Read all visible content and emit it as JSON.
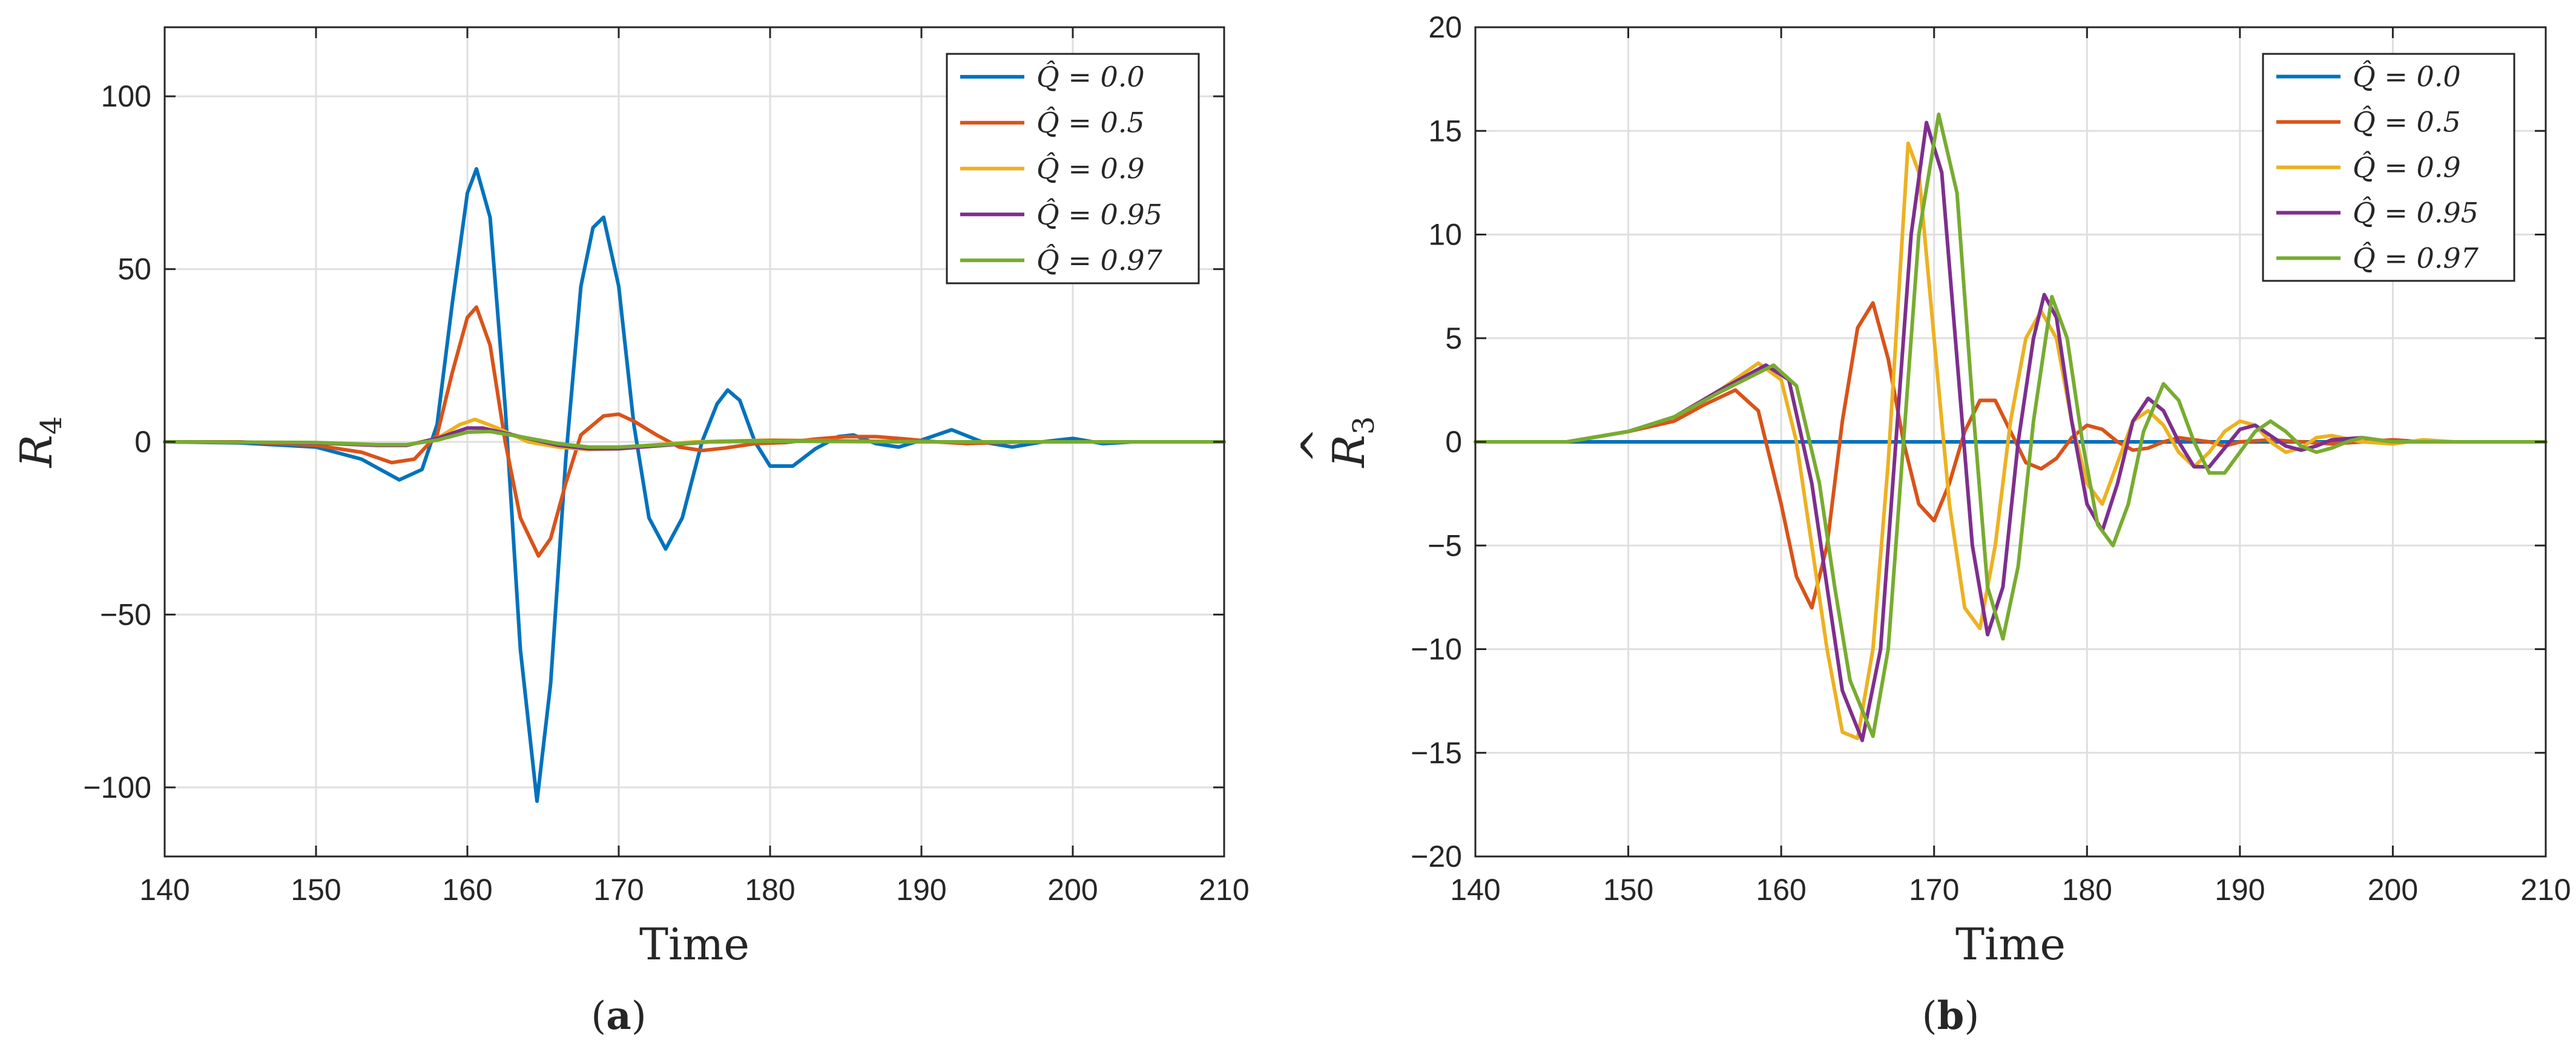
{
  "chart_data": [
    {
      "id": "a",
      "type": "line",
      "caption_letter": "a",
      "xlabel": "Time",
      "ylabel_base": "R",
      "ylabel_sub": "4",
      "xlim": [
        140,
        210
      ],
      "ylim": [
        -120,
        120
      ],
      "xticks": [
        140,
        150,
        160,
        170,
        180,
        190,
        200,
        210
      ],
      "xtick_labels": [
        "140",
        "150",
        "160",
        "170",
        "180",
        "190",
        "200",
        "210"
      ],
      "yticks": [
        -100,
        -50,
        0,
        50,
        100
      ],
      "ytick_labels": [
        "−100",
        "−50",
        "0",
        "50",
        "100"
      ],
      "grid": true,
      "legend_position": "top-right",
      "series": [
        {
          "name": "Q̂ = 0.0",
          "color": "#0072BD",
          "x": [
            140,
            145,
            150,
            153,
            155.5,
            157,
            158,
            159,
            160,
            160.6,
            161.5,
            162.5,
            163.5,
            164.6,
            165.5,
            166.5,
            167.5,
            168.3,
            169,
            170,
            171,
            172,
            173.1,
            174.2,
            175.5,
            176.5,
            177.2,
            178,
            179,
            180,
            181.5,
            183,
            184.5,
            185.5,
            187,
            188.5,
            190,
            192,
            194,
            196,
            198,
            200,
            202,
            204,
            206,
            208,
            210
          ],
          "y": [
            0,
            -0.3,
            -1.5,
            -5,
            -11,
            -8,
            5,
            40,
            72,
            79,
            65,
            10,
            -60,
            -104,
            -70,
            -5,
            45,
            62,
            65,
            45,
            5,
            -22,
            -31,
            -22,
            0,
            11,
            15,
            12,
            0,
            -7,
            -7,
            -2,
            1.5,
            2,
            -0.5,
            -1.5,
            0.5,
            3.5,
            0,
            -1.5,
            0,
            1,
            -0.5,
            0,
            0,
            0,
            0
          ]
        },
        {
          "name": "Q̂ = 0.5",
          "color": "#D95319",
          "x": [
            140,
            145,
            150,
            153,
            155,
            156.5,
            158,
            159,
            160,
            160.6,
            161.5,
            162.5,
            163.5,
            164.7,
            165.5,
            166.5,
            167.5,
            169,
            170,
            171,
            172.5,
            174,
            175.5,
            177,
            179,
            181,
            183,
            185,
            187,
            189,
            191,
            193,
            195,
            197,
            200,
            205,
            210
          ],
          "y": [
            0,
            0,
            -1,
            -3,
            -6,
            -5,
            2,
            20,
            36,
            39,
            28,
            0,
            -22,
            -33,
            -28,
            -12,
            2,
            7.5,
            8,
            6,
            2,
            -1.5,
            -2.5,
            -1.8,
            -0.5,
            -0.2,
            0.8,
            1.5,
            1.5,
            0.8,
            0,
            -0.5,
            -0.2,
            0,
            0,
            0,
            0
          ]
        },
        {
          "name": "Q̂ = 0.9",
          "color": "#EDB120",
          "x": [
            140,
            150,
            154,
            156,
            158,
            159.5,
            160.5,
            162,
            164,
            166,
            168,
            170,
            172,
            175,
            180,
            190,
            200,
            210
          ],
          "y": [
            0,
            -0.3,
            -1,
            -1,
            1,
            5,
            6.5,
            4,
            0,
            -1.5,
            -2.2,
            -2,
            -1,
            0,
            0.5,
            0,
            0,
            0
          ]
        },
        {
          "name": "Q̂ = 0.95",
          "color": "#7E2F8E",
          "x": [
            140,
            150,
            154,
            156,
            158,
            160,
            161,
            163,
            166,
            168,
            170,
            173,
            176,
            180,
            190,
            200,
            210
          ],
          "y": [
            0,
            -0.3,
            -1,
            -1,
            1,
            4,
            4,
            2,
            -1,
            -2,
            -2,
            -1,
            0,
            0.3,
            0,
            0,
            0
          ]
        },
        {
          "name": "Q̂ = 0.97",
          "color": "#77AC30",
          "x": [
            140,
            150,
            154,
            156,
            158,
            160,
            161.5,
            163.5,
            166,
            168,
            170,
            173,
            176,
            180,
            190,
            200,
            210
          ],
          "y": [
            0,
            -0.2,
            -0.8,
            -0.8,
            0.5,
            2.8,
            3,
            1.5,
            -0.5,
            -1.5,
            -1.5,
            -0.8,
            0,
            0.2,
            0,
            0,
            0
          ]
        }
      ]
    },
    {
      "id": "b",
      "type": "line",
      "caption_letter": "b",
      "xlabel": "Time",
      "ylabel_base": "R",
      "ylabel_sub": "3",
      "xlim": [
        140,
        210
      ],
      "ylim": [
        -20,
        20
      ],
      "xticks": [
        140,
        150,
        160,
        170,
        180,
        190,
        200,
        210
      ],
      "xtick_labels": [
        "140",
        "150",
        "160",
        "170",
        "180",
        "190",
        "200",
        "210"
      ],
      "yticks": [
        -20,
        -15,
        -10,
        -5,
        0,
        5,
        10,
        15,
        20
      ],
      "ytick_labels": [
        "−20",
        "−15",
        "−10",
        "−5",
        "0",
        "5",
        "10",
        "15",
        "20"
      ],
      "grid": true,
      "legend_position": "top-right",
      "series": [
        {
          "name": "Q̂ = 0.0",
          "color": "#0072BD",
          "x": [
            140,
            210
          ],
          "y": [
            0,
            0
          ]
        },
        {
          "name": "Q̂ = 0.5",
          "color": "#D95319",
          "x": [
            140,
            146,
            150,
            153,
            155,
            157,
            158.5,
            160,
            161,
            162,
            163,
            164,
            165,
            166,
            167,
            168,
            169,
            170,
            171,
            172,
            173,
            174,
            175,
            176,
            177,
            178,
            179,
            180,
            181,
            182,
            183,
            184,
            185,
            186,
            187,
            188,
            189,
            190,
            192,
            194,
            196,
            198,
            200,
            202,
            204,
            206,
            208,
            210
          ],
          "y": [
            0,
            0,
            0.5,
            1,
            1.8,
            2.5,
            1.5,
            -3,
            -6.5,
            -8,
            -5,
            1,
            5.5,
            6.7,
            4,
            0,
            -3,
            -3.8,
            -2,
            0.5,
            2,
            2,
            0.5,
            -1,
            -1.3,
            -0.8,
            0.2,
            0.8,
            0.6,
            0,
            -0.4,
            -0.3,
            0,
            0.2,
            0.1,
            0,
            -0.2,
            0,
            0.1,
            0,
            -0.1,
            0,
            0.1,
            0,
            0,
            0,
            0,
            0
          ]
        },
        {
          "name": "Q̂ = 0.9",
          "color": "#EDB120",
          "x": [
            140,
            146,
            150,
            153,
            156,
            158.5,
            160,
            161,
            162,
            163,
            164,
            165,
            166,
            167,
            168.3,
            169,
            170,
            171,
            172,
            173,
            174,
            175,
            176,
            177,
            178,
            179,
            180,
            181,
            182,
            183,
            184,
            185,
            186,
            187,
            188,
            189,
            190,
            191,
            192,
            193,
            194,
            195,
            196,
            198,
            200,
            202,
            204,
            206,
            210
          ],
          "y": [
            0,
            0,
            0.5,
            1.2,
            2.5,
            3.8,
            3,
            0,
            -5,
            -10,
            -14,
            -14.3,
            -10,
            -1,
            14.4,
            13,
            5,
            -3,
            -8,
            -9,
            -5,
            1,
            5,
            6.3,
            5,
            1,
            -2,
            -3,
            -1,
            1,
            1.5,
            0.8,
            -0.5,
            -1.2,
            -0.5,
            0.5,
            1,
            0.8,
            0,
            -0.5,
            -0.3,
            0.2,
            0.3,
            0,
            -0.1,
            0.1,
            0,
            0,
            0
          ]
        },
        {
          "name": "Q̂ = 0.95",
          "color": "#7E2F8E",
          "x": [
            140,
            146,
            150,
            153,
            156,
            159,
            160.5,
            162,
            163,
            164,
            165.3,
            166.5,
            167.5,
            168.5,
            169.5,
            170.5,
            171.5,
            172.5,
            173.5,
            174.5,
            175.5,
            176.5,
            177.2,
            178,
            179,
            180,
            181,
            182,
            183,
            184,
            185,
            186,
            187,
            188,
            189,
            190,
            191,
            192,
            193,
            194,
            195,
            196,
            198,
            200,
            202,
            204,
            206,
            210
          ],
          "y": [
            0,
            0,
            0.5,
            1.2,
            2.5,
            3.7,
            3,
            -2,
            -7,
            -12,
            -14.4,
            -10,
            0,
            10,
            15.4,
            13,
            4,
            -5,
            -9.3,
            -7,
            0,
            5,
            7.1,
            6,
            1,
            -3,
            -4.3,
            -2,
            1,
            2.1,
            1.5,
            0,
            -1.2,
            -1.2,
            -0.3,
            0.6,
            0.8,
            0.3,
            -0.2,
            -0.4,
            -0.2,
            0.1,
            0.2,
            0,
            0,
            0,
            0,
            0
          ]
        },
        {
          "name": "Q̂ = 0.97",
          "color": "#77AC30",
          "x": [
            140,
            146,
            150,
            153,
            156,
            159.5,
            161,
            162.5,
            163.5,
            164.5,
            166,
            167,
            168,
            169,
            170.3,
            171.5,
            172.5,
            173.5,
            174.5,
            175.5,
            176.5,
            177.7,
            178.7,
            179.7,
            180.7,
            181.7,
            182.7,
            183.7,
            185,
            186,
            187,
            188,
            189,
            190,
            191,
            192,
            193,
            194,
            195,
            196,
            197,
            198,
            199,
            200,
            202,
            204,
            206,
            210
          ],
          "y": [
            0,
            0,
            0.5,
            1.2,
            2.4,
            3.7,
            2.7,
            -2,
            -7,
            -11.5,
            -14.2,
            -10,
            0,
            10,
            15.8,
            12,
            2,
            -7,
            -9.5,
            -6,
            1,
            7,
            5,
            0,
            -4,
            -5,
            -3,
            0.5,
            2.8,
            2,
            0,
            -1.5,
            -1.5,
            -0.5,
            0.5,
            1,
            0.5,
            -0.2,
            -0.5,
            -0.3,
            0,
            0.2,
            0.1,
            0,
            0,
            0,
            0,
            0
          ]
        }
      ]
    }
  ]
}
